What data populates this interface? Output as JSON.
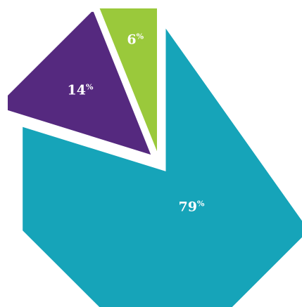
{
  "chart_data": {
    "type": "pie",
    "shape": "octagon",
    "exploded": true,
    "legend": "none",
    "slices": [
      {
        "value": 79,
        "label": "79",
        "unit": "%",
        "color": "#16a4b9"
      },
      {
        "value": 14,
        "label": "14",
        "unit": "%",
        "color": "#55297f"
      },
      {
        "value": 6,
        "label": "6",
        "unit": "%",
        "color": "#9ac93b"
      }
    ]
  }
}
